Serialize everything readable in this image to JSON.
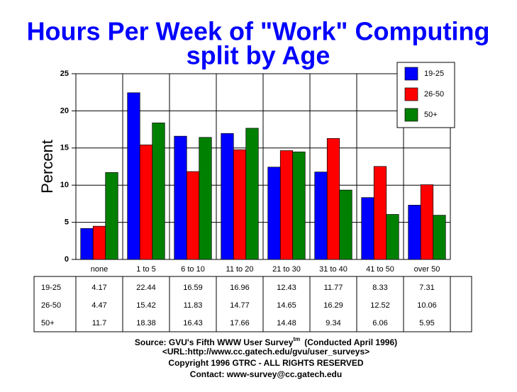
{
  "chart_data": {
    "type": "bar",
    "title": "Hours Per Week of \"Work\" Computing",
    "subtitle": "split by Age",
    "y_label": "Percent",
    "categories": [
      "none",
      "1 to 5",
      "6 to 10",
      "11 to 20",
      "21 to 30",
      "31 to 40",
      "41 to 50",
      "over 50"
    ],
    "series": [
      {
        "name": "19-25",
        "color": "#0000ff",
        "values": [
          4.17,
          22.44,
          16.59,
          16.96,
          12.43,
          11.77,
          8.33,
          7.31
        ]
      },
      {
        "name": "26-50",
        "color": "#ff0000",
        "values": [
          4.47,
          15.42,
          11.83,
          14.77,
          14.65,
          16.29,
          12.52,
          10.06
        ]
      },
      {
        "name": "50+",
        "color": "#008000",
        "values": [
          11.7,
          18.38,
          16.43,
          17.66,
          14.48,
          9.34,
          6.06,
          5.95
        ]
      }
    ],
    "ylim": [
      0,
      25
    ],
    "yticks": [
      0,
      5,
      10,
      15,
      20,
      25
    ],
    "grid": true,
    "legend": "top-right"
  },
  "footer": {
    "source": "Source: GVU's Fifth WWW User Survey",
    "superscript": "tm",
    "conducted": "(Conducted April 1996)",
    "url": "<URL:http://www.cc.gatech.edu/gvu/user_surveys>",
    "copyright": "Copyright 1996 GTRC -  ALL RIGHTS RESERVED",
    "contact": "Contact: www-survey@cc.gatech.edu"
  }
}
